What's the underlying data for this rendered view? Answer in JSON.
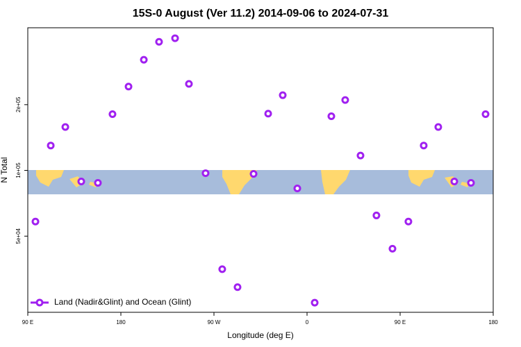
{
  "chart_data": {
    "type": "scatter",
    "title": "15S-0 August (Ver 11.2)   2014-09-06 to 2024-07-31",
    "x_label": "Longitude (deg E)",
    "y_label": "N Total",
    "series": [
      {
        "name": "Land (Nadir&Glint) and Ocean (Glint)",
        "color": "#a020f0",
        "x": [
          97.4,
          112.2,
          126.3,
          141.7,
          157.8,
          171.9,
          187.4,
          202.2,
          216.9,
          232.4,
          245.8,
          261.9,
          278,
          292.8,
          308.3,
          322.4,
          336.5,
          350.6,
          367.4,
          383.5,
          396.9,
          411.7,
          427.1,
          442.6,
          458,
          472.8,
          486.9,
          502.4,
          518.5,
          532.6
        ],
        "values": [
          58300,
          130000,
          158000,
          89000,
          87700,
          181000,
          242000,
          321000,
          388000,
          403000,
          249000,
          97100,
          35300,
          29200,
          96400,
          182000,
          221000,
          82700,
          24800,
          177000,
          210000,
          117000,
          62200,
          43800,
          58300,
          130000,
          158000,
          89000,
          87700,
          181000
        ]
      }
    ],
    "xlim": [
      90,
      540
    ],
    "xticks": [
      {
        "value": 90,
        "label": "90 E"
      },
      180,
      {
        "value": 270,
        "label": "90 W"
      },
      {
        "value": 360,
        "label": "0"
      },
      {
        "value": 450,
        "label": "90 E"
      },
      {
        "value": 540,
        "label": "180"
      }
    ],
    "ylim": [
      22400,
      450000
    ],
    "yticks": [
      {
        "value": 50000,
        "label": "5e+04"
      },
      {
        "value": 100000,
        "label": "1e+05"
      },
      {
        "value": 200000,
        "label": "2e+05"
      }
    ],
    "y_scale": "log",
    "legend": "bottom-left"
  }
}
